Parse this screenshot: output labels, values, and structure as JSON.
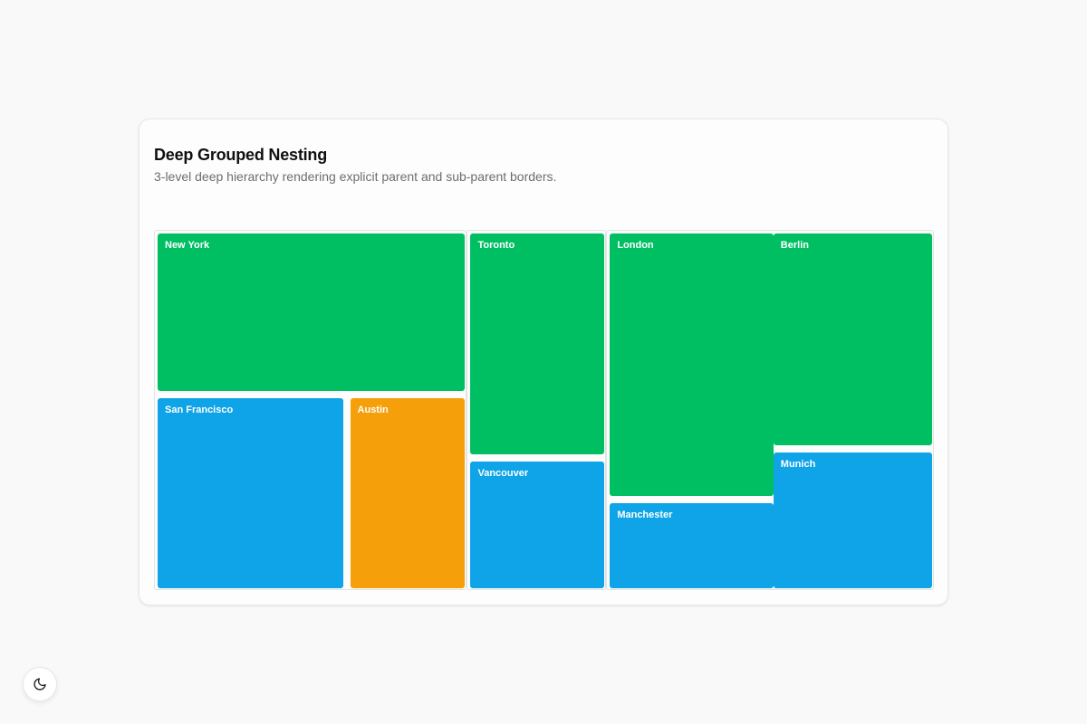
{
  "card": {
    "title": "Deep Grouped Nesting",
    "subtitle": "3-level deep hierarchy rendering explicit parent and sub-parent borders."
  },
  "theme_toggle": {
    "icon": "moon-icon"
  },
  "colors": {
    "green": "#00bf63",
    "blue": "#0fa4e8",
    "orange": "#f59f0b"
  },
  "chart_data": {
    "type": "treemap",
    "title": "Deep Grouped Nesting",
    "subtitle": "3-level deep hierarchy rendering explicit parent and sub-parent borders.",
    "groups": [
      {
        "name": "",
        "subgroups": [
          {
            "name": "",
            "children": [
              {
                "name": "New York",
                "value": 58,
                "color": "#00bf63"
              },
              {
                "name": "San Francisco",
                "value": 43,
                "color": "#0fa4e8"
              },
              {
                "name": "Austin",
                "value": 27,
                "color": "#f59f0b"
              }
            ]
          }
        ]
      },
      {
        "name": "",
        "subgroups": [
          {
            "name": "",
            "children": [
              {
                "name": "Toronto",
                "value": 36,
                "color": "#00bf63"
              },
              {
                "name": "Vancouver",
                "value": 21,
                "color": "#0fa4e8"
              }
            ]
          }
        ]
      },
      {
        "name": "",
        "subgroups": [
          {
            "name": "",
            "children": [
              {
                "name": "London",
                "value": 51,
                "color": "#00bf63"
              },
              {
                "name": "Manchester",
                "value": 17,
                "color": "#0fa4e8"
              }
            ]
          },
          {
            "name": "",
            "children": [
              {
                "name": "Berlin",
                "value": 40,
                "color": "#00bf63"
              },
              {
                "name": "Munich",
                "value": 26,
                "color": "#0fa4e8"
              }
            ]
          }
        ]
      }
    ]
  }
}
